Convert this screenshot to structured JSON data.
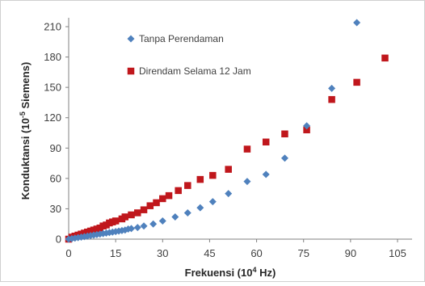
{
  "chart_data": {
    "type": "scatter",
    "xlabel_prefix": "Frekuensi (10",
    "xlabel_exp": "4",
    "xlabel_suffix": " Hz)",
    "ylabel_prefix": "Konduktansi (10",
    "ylabel_exp": "-5",
    "ylabel_suffix": " Siemens)",
    "xlim": [
      0,
      105
    ],
    "ylim": [
      0,
      225
    ],
    "x_ticks": [
      0,
      15,
      30,
      45,
      60,
      75,
      90,
      105
    ],
    "y_ticks": [
      0,
      30,
      60,
      90,
      120,
      150,
      180,
      210
    ],
    "x_tick_labels": [
      "0",
      "15",
      "30",
      "45",
      "60",
      "75",
      "90",
      "105"
    ],
    "y_tick_labels": [
      "0",
      "30",
      "60",
      "90",
      "120",
      "150",
      "180",
      "210"
    ],
    "grid": false,
    "legend_position": "top-left",
    "series": [
      {
        "name": "Tanpa Perendaman",
        "marker": "diamond",
        "color": "#4f81bd",
        "points": [
          [
            0,
            0
          ],
          [
            1,
            0.5
          ],
          [
            2,
            1
          ],
          [
            3,
            1.5
          ],
          [
            4,
            2
          ],
          [
            5,
            2.5
          ],
          [
            6,
            3
          ],
          [
            7,
            3.5
          ],
          [
            8,
            4
          ],
          [
            9,
            4.5
          ],
          [
            10,
            5
          ],
          [
            11,
            5.5
          ],
          [
            12,
            6
          ],
          [
            13,
            6.5
          ],
          [
            14,
            7
          ],
          [
            15,
            7.5
          ],
          [
            16,
            8
          ],
          [
            17,
            8.5
          ],
          [
            18,
            9
          ],
          [
            19,
            10
          ],
          [
            20,
            10.5
          ],
          [
            22,
            11.5
          ],
          [
            24,
            13
          ],
          [
            27,
            15
          ],
          [
            30,
            18
          ],
          [
            34,
            22
          ],
          [
            38,
            26
          ],
          [
            42,
            31
          ],
          [
            46,
            37
          ],
          [
            51,
            45
          ],
          [
            57,
            57
          ],
          [
            63,
            64
          ],
          [
            69,
            80
          ],
          [
            76,
            112
          ],
          [
            84,
            149
          ],
          [
            92,
            214
          ]
        ]
      },
      {
        "name": "Direndam Selama 12 Jam",
        "marker": "square",
        "color": "#c0171c",
        "points": [
          [
            0,
            0
          ],
          [
            1,
            2
          ],
          [
            2,
            3
          ],
          [
            3,
            4
          ],
          [
            4,
            5
          ],
          [
            5,
            6
          ],
          [
            6,
            7
          ],
          [
            7,
            8
          ],
          [
            8,
            9
          ],
          [
            9,
            10
          ],
          [
            10,
            11
          ],
          [
            11,
            13
          ],
          [
            12,
            14
          ],
          [
            13,
            16
          ],
          [
            14,
            17
          ],
          [
            15,
            18
          ],
          [
            17,
            20
          ],
          [
            18,
            22
          ],
          [
            20,
            24
          ],
          [
            22,
            26
          ],
          [
            24,
            29
          ],
          [
            26,
            33
          ],
          [
            28,
            36
          ],
          [
            30,
            40
          ],
          [
            32,
            43
          ],
          [
            35,
            48
          ],
          [
            38,
            53
          ],
          [
            42,
            59
          ],
          [
            46,
            63
          ],
          [
            51,
            69
          ],
          [
            57,
            89
          ],
          [
            63,
            96
          ],
          [
            69,
            104
          ],
          [
            76,
            108
          ],
          [
            84,
            138
          ],
          [
            92,
            155
          ],
          [
            101,
            179
          ]
        ]
      }
    ]
  }
}
